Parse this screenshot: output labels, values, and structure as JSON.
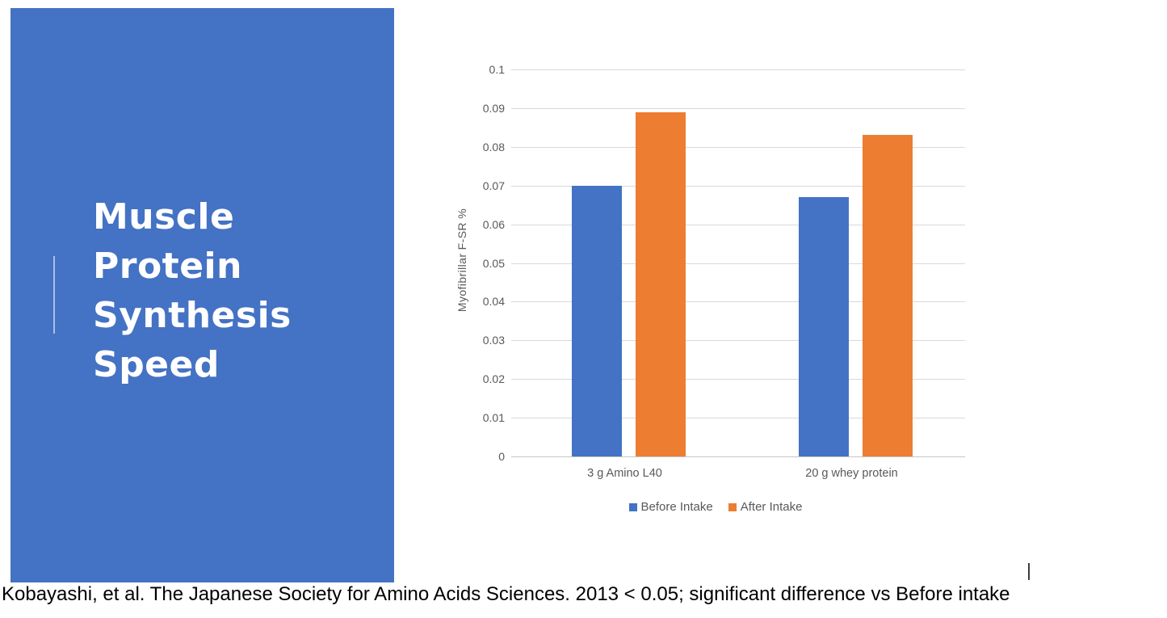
{
  "slide": {
    "title_lines": [
      "Muscle",
      "Protein",
      "Synthesis",
      "Speed"
    ],
    "panel_color": "#4472C4",
    "caption": "Kobayashi, et al. The Japanese Society for Amino Acids Sciences. 2013 < 0.05; significant difference vs Before intake",
    "text_cursor": "|"
  },
  "chart_data": {
    "type": "bar",
    "categories": [
      "3 g Amino L40",
      "20 g whey protein"
    ],
    "series": [
      {
        "name": "Before Intake",
        "color": "#4472C4",
        "values": [
          0.07,
          0.067
        ]
      },
      {
        "name": "After Intake",
        "color": "#ED7D31",
        "values": [
          0.089,
          0.083
        ]
      }
    ],
    "title": "",
    "xlabel": "",
    "ylabel": "Myofibrillar  F-SR %",
    "ylim": [
      0,
      0.1
    ],
    "ytick_step": 0.01,
    "yticks": [
      "0.1",
      "0.09",
      "0.08",
      "0.07",
      "0.06",
      "0.05",
      "0.04",
      "0.03",
      "0.02",
      "0.01",
      "0"
    ],
    "grid": true,
    "legend_position": "bottom"
  },
  "colors": {
    "accent_blue": "#4472C4",
    "accent_orange": "#ED7D31",
    "gridline": "#D9D9D9",
    "axis_text": "#595959",
    "caption_text": "#000000"
  }
}
